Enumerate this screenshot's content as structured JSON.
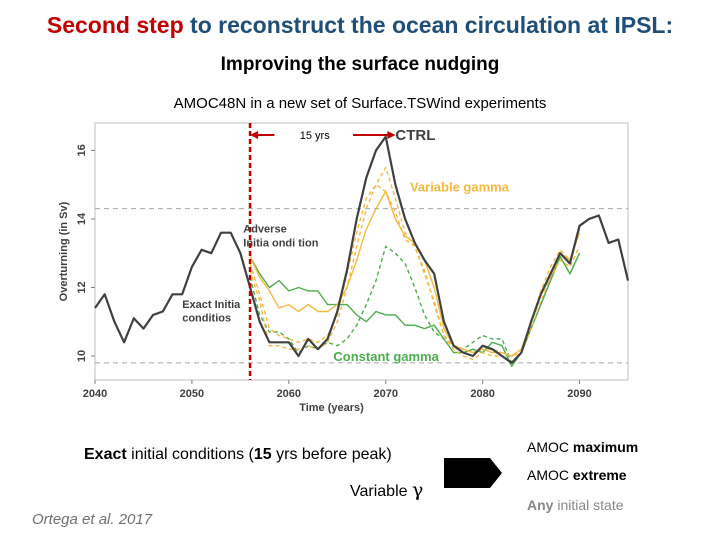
{
  "header": {
    "title_accent": "Second step",
    "title_rest": " to reconstruct the ocean circulation at IPSL:",
    "subtitle": "Improving the surface nudging"
  },
  "chart_data": {
    "type": "line",
    "title": "AMOC48N in a new set of Surface.TSWind experiments",
    "xlabel": "Time (years)",
    "ylabel": "Overturning (in Sv)",
    "xlim": [
      2040,
      2095
    ],
    "ylim": [
      9.3,
      16.8
    ],
    "x_ticks": [
      2040,
      2050,
      2060,
      2070,
      2080,
      2090
    ],
    "y_ticks": [
      10,
      12,
      14,
      16
    ],
    "dashed_reference_lines": [
      14.3,
      9.8
    ],
    "vertical_marker_year": 2056,
    "span_label": "15 yrs",
    "span_years": [
      2056,
      2071
    ],
    "annotations": {
      "ctrl": "CTRL",
      "variable_gamma": "Variable gamma",
      "constant_gamma": "Constant gamma",
      "adverse_line1": "Adverse",
      "adverse_line2": "Initia   ondi  tion",
      "exact_line1": "Exact Initia",
      "exact_line2": "conditios"
    },
    "colors": {
      "ctrl": "#404040",
      "variable_gamma": "#f5b940",
      "constant_gamma": "#4cae4c",
      "marker": "#c00000",
      "reference": "#a6a6a6"
    },
    "series": [
      {
        "name": "CTRL",
        "style": "solid",
        "color": "#404040",
        "x": [
          2040,
          2041,
          2042,
          2043,
          2044,
          2045,
          2046,
          2047,
          2048,
          2049,
          2050,
          2051,
          2052,
          2053,
          2054,
          2055,
          2056,
          2057,
          2058,
          2059,
          2060,
          2061,
          2062,
          2063,
          2064,
          2065,
          2066,
          2067,
          2068,
          2069,
          2070,
          2071,
          2072,
          2073,
          2074,
          2075,
          2076,
          2077,
          2078,
          2079,
          2080,
          2081,
          2082,
          2083,
          2084,
          2085,
          2086,
          2087,
          2088,
          2089,
          2090,
          2091,
          2092,
          2093,
          2094,
          2095
        ],
        "y": [
          11.4,
          11.8,
          11.0,
          10.4,
          11.1,
          10.8,
          11.2,
          11.3,
          11.8,
          11.8,
          12.6,
          13.1,
          13.0,
          13.6,
          13.6,
          13.0,
          12.0,
          11.0,
          10.4,
          10.4,
          10.4,
          10.0,
          10.5,
          10.2,
          10.5,
          11.3,
          12.5,
          14.0,
          15.2,
          16.0,
          16.4,
          15.0,
          14.0,
          13.3,
          12.8,
          12.4,
          11.0,
          10.3,
          10.1,
          10.0,
          10.3,
          10.2,
          10.0,
          9.8,
          10.1,
          11.0,
          11.8,
          12.4,
          13.0,
          12.7,
          13.8,
          14.0,
          14.1,
          13.3,
          13.4,
          12.2
        ]
      },
      {
        "name": "Variable gamma 1",
        "style": "solid",
        "color": "#f5b940",
        "x": [
          2056,
          2057,
          2058,
          2059,
          2060,
          2061,
          2062,
          2063,
          2064,
          2065,
          2066,
          2067,
          2068,
          2069,
          2070,
          2071,
          2072,
          2073,
          2074,
          2075,
          2076,
          2077,
          2078,
          2079,
          2080,
          2081,
          2082,
          2083,
          2084,
          2085,
          2086,
          2087,
          2088,
          2089,
          2090
        ],
        "y": [
          12.9,
          12.3,
          11.9,
          11.4,
          11.5,
          11.3,
          11.5,
          11.3,
          11.3,
          11.5,
          12.0,
          12.8,
          13.7,
          14.3,
          14.8,
          14.0,
          13.5,
          13.3,
          12.8,
          12.0,
          10.8,
          10.3,
          10.2,
          10.1,
          10.2,
          10.1,
          10.1,
          10.0,
          10.2,
          11.0,
          11.8,
          12.3,
          13.0,
          12.8,
          13.6
        ]
      },
      {
        "name": "Variable gamma 2",
        "style": "dashed",
        "color": "#f5b940",
        "x": [
          2056,
          2057,
          2058,
          2059,
          2060,
          2061,
          2062,
          2063,
          2064,
          2065,
          2066,
          2067,
          2068,
          2069,
          2070,
          2071,
          2072,
          2073,
          2074,
          2075,
          2076,
          2077,
          2078,
          2079,
          2080,
          2081,
          2082,
          2083,
          2084,
          2085,
          2086,
          2087,
          2088,
          2089,
          2090
        ],
        "y": [
          12.5,
          11.6,
          10.3,
          10.3,
          10.2,
          10.2,
          10.3,
          10.2,
          10.4,
          11.0,
          12.0,
          13.2,
          14.3,
          15.0,
          15.5,
          14.6,
          13.6,
          13.2,
          12.5,
          11.5,
          10.6,
          10.2,
          10.0,
          9.9,
          10.1,
          10.0,
          10.0,
          9.8,
          10.1,
          10.8,
          11.6,
          12.3,
          12.8,
          12.6,
          13.2
        ]
      },
      {
        "name": "Variable gamma 3",
        "style": "dashed",
        "color": "#f5b940",
        "x": [
          2056,
          2057,
          2058,
          2059,
          2060,
          2061,
          2062,
          2063,
          2064,
          2065,
          2066,
          2067,
          2068,
          2069,
          2070,
          2071,
          2072,
          2073,
          2074,
          2075,
          2076,
          2077,
          2078,
          2079,
          2080,
          2081,
          2082,
          2083,
          2084,
          2085,
          2086,
          2087,
          2088,
          2089,
          2090
        ],
        "y": [
          12.7,
          11.8,
          10.8,
          10.6,
          10.5,
          10.4,
          10.5,
          10.4,
          10.6,
          11.2,
          12.4,
          13.6,
          14.6,
          15.0,
          14.8,
          14.2,
          13.4,
          13.2,
          12.4,
          11.6,
          10.6,
          10.3,
          10.2,
          10.1,
          10.2,
          10.2,
          10.1,
          10.0,
          10.1,
          11.0,
          11.9,
          12.6,
          13.1,
          12.8,
          13.7
        ]
      },
      {
        "name": "Constant gamma 1",
        "style": "solid",
        "color": "#4cae4c",
        "x": [
          2056,
          2057,
          2058,
          2059,
          2060,
          2061,
          2062,
          2063,
          2064,
          2065,
          2066,
          2067,
          2068,
          2069,
          2070,
          2071,
          2072,
          2073,
          2074,
          2075,
          2076,
          2077,
          2078,
          2079,
          2080,
          2081,
          2082,
          2083,
          2084,
          2085,
          2086,
          2087,
          2088,
          2089,
          2090
        ],
        "y": [
          12.9,
          12.4,
          12.0,
          12.2,
          11.9,
          12.0,
          11.9,
          11.9,
          11.5,
          11.5,
          11.5,
          11.2,
          11.0,
          11.3,
          11.2,
          11.2,
          10.9,
          10.9,
          10.8,
          10.9,
          10.5,
          10.1,
          10.1,
          10.2,
          10.1,
          10.4,
          10.3,
          9.7,
          10.1,
          10.8,
          11.5,
          12.2,
          12.9,
          12.4,
          13.0
        ]
      },
      {
        "name": "Constant gamma 2",
        "style": "dashed",
        "color": "#4cae4c",
        "x": [
          2056,
          2057,
          2058,
          2059,
          2060,
          2061,
          2062,
          2063,
          2064,
          2065,
          2066,
          2067,
          2068,
          2069,
          2070,
          2071,
          2072,
          2073,
          2074,
          2075,
          2076,
          2077,
          2078,
          2079,
          2080,
          2081,
          2082,
          2083,
          2084,
          2085,
          2086,
          2087,
          2088,
          2089,
          2090
        ],
        "y": [
          12.3,
          11.2,
          10.7,
          10.7,
          10.5,
          10.1,
          10.3,
          10.2,
          10.4,
          10.3,
          10.5,
          10.9,
          11.5,
          12.2,
          13.2,
          13.0,
          12.7,
          12.0,
          11.2,
          10.7,
          10.5,
          10.3,
          10.2,
          10.4,
          10.6,
          10.5,
          10.5,
          9.8,
          10.1,
          10.8,
          11.5,
          12.2,
          12.9,
          12.4,
          13.0
        ]
      }
    ]
  },
  "footer": {
    "exact_bold": "Exact",
    "exact_mid": " initial conditions (",
    "exact_num": "15",
    "exact_end": " yrs before peak)",
    "variable_text": "Variable ",
    "gamma_symbol": "γ",
    "citation": "Ortega et al. 2017",
    "result1_a": "AMOC ",
    "result1_b": "maximum",
    "result2_a": "AMOC ",
    "result2_b": "extreme",
    "result3_a": "Any ",
    "result3_b": "initial state"
  }
}
